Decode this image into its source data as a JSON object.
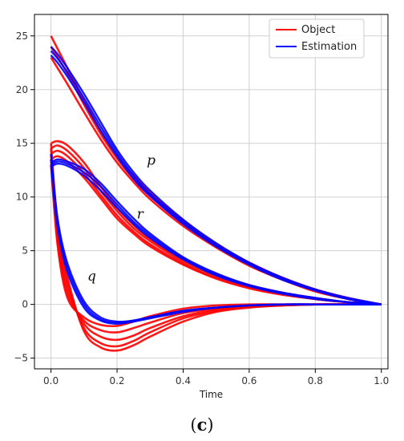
{
  "chart_data": {
    "type": "line",
    "xlabel": "Time",
    "ylabel": "",
    "xlim": [
      -0.05,
      1.02
    ],
    "ylim": [
      -6,
      27
    ],
    "xticks": [
      0.0,
      0.2,
      0.4,
      0.6,
      0.8,
      1.0
    ],
    "xtick_labels": [
      "0.0",
      "0.2",
      "0.4",
      "0.6",
      "0.8",
      "1.0"
    ],
    "yticks": [
      -5,
      0,
      5,
      10,
      15,
      20,
      25
    ],
    "ytick_labels": [
      "−5",
      "0",
      "5",
      "10",
      "15",
      "20",
      "25"
    ],
    "grid": true,
    "legend": {
      "placement": "top-right",
      "entries": [
        {
          "label": "Object",
          "color": "#ff0000"
        },
        {
          "label": "Estimation",
          "color": "#0000ff"
        }
      ]
    },
    "annotations": [
      {
        "text": "p",
        "x": 0.29,
        "y": 13.0
      },
      {
        "text": "r",
        "x": 0.26,
        "y": 8.0
      },
      {
        "text": "q",
        "x": 0.11,
        "y": 2.2
      }
    ],
    "x": [
      0.0,
      0.02,
      0.05,
      0.1,
      0.15,
      0.2,
      0.25,
      0.3,
      0.4,
      0.5,
      0.6,
      0.7,
      0.8,
      0.9,
      1.0
    ],
    "series": [
      {
        "group": "Object",
        "curve": "p",
        "values": [
          25.0,
          23.8,
          22.0,
          19.0,
          16.2,
          13.8,
          12.0,
          10.4,
          7.8,
          5.6,
          3.9,
          2.5,
          1.4,
          0.6,
          0.0
        ]
      },
      {
        "group": "Object",
        "curve": "p",
        "values": [
          24.0,
          23.0,
          21.5,
          18.6,
          15.9,
          13.6,
          11.7,
          10.1,
          7.6,
          5.5,
          3.8,
          2.4,
          1.3,
          0.5,
          0.0
        ]
      },
      {
        "group": "Object",
        "curve": "p",
        "values": [
          23.0,
          22.0,
          20.5,
          17.9,
          15.4,
          13.2,
          11.4,
          9.8,
          7.3,
          5.3,
          3.6,
          2.3,
          1.2,
          0.5,
          0.0
        ]
      },
      {
        "group": "Estimation",
        "curve": "p",
        "values": [
          24.0,
          23.3,
          22.0,
          19.6,
          17.0,
          14.4,
          12.3,
          10.6,
          7.9,
          5.7,
          3.9,
          2.5,
          1.4,
          0.6,
          0.0
        ]
      },
      {
        "group": "Estimation",
        "curve": "p",
        "values": [
          23.6,
          22.9,
          21.6,
          19.2,
          16.6,
          14.1,
          12.0,
          10.3,
          7.7,
          5.5,
          3.8,
          2.4,
          1.3,
          0.5,
          0.0
        ]
      },
      {
        "group": "Estimation",
        "curve": "p",
        "values": [
          23.2,
          22.5,
          21.2,
          18.8,
          16.2,
          13.8,
          11.7,
          10.1,
          7.5,
          5.4,
          3.7,
          2.3,
          1.3,
          0.5,
          0.0
        ]
      },
      {
        "group": "Object",
        "curve": "r",
        "values": [
          15.0,
          15.2,
          14.8,
          13.2,
          11.0,
          9.0,
          7.4,
          6.1,
          4.2,
          2.8,
          1.8,
          1.1,
          0.6,
          0.2,
          0.0
        ]
      },
      {
        "group": "Object",
        "curve": "r",
        "values": [
          14.5,
          14.8,
          14.3,
          12.7,
          10.6,
          8.7,
          7.1,
          5.9,
          4.0,
          2.7,
          1.7,
          1.0,
          0.5,
          0.2,
          0.0
        ]
      },
      {
        "group": "Object",
        "curve": "r",
        "values": [
          14.0,
          14.3,
          13.8,
          12.2,
          10.2,
          8.3,
          6.8,
          5.6,
          3.8,
          2.5,
          1.6,
          1.0,
          0.5,
          0.2,
          0.0
        ]
      },
      {
        "group": "Object",
        "curve": "r",
        "values": [
          13.5,
          13.8,
          13.3,
          11.8,
          9.9,
          8.0,
          6.6,
          5.4,
          3.7,
          2.4,
          1.5,
          0.9,
          0.5,
          0.2,
          0.0
        ]
      },
      {
        "group": "Estimation",
        "curve": "r",
        "values": [
          13.2,
          13.5,
          13.3,
          12.6,
          11.3,
          9.6,
          8.0,
          6.6,
          4.4,
          2.9,
          1.8,
          1.1,
          0.6,
          0.2,
          0.0
        ]
      },
      {
        "group": "Estimation",
        "curve": "r",
        "values": [
          13.0,
          13.3,
          13.1,
          12.3,
          11.0,
          9.3,
          7.7,
          6.4,
          4.3,
          2.8,
          1.8,
          1.1,
          0.6,
          0.2,
          0.0
        ]
      },
      {
        "group": "Estimation",
        "curve": "r",
        "values": [
          12.8,
          13.1,
          12.9,
          12.0,
          10.6,
          9.0,
          7.5,
          6.2,
          4.2,
          2.7,
          1.7,
          1.0,
          0.5,
          0.2,
          0.0
        ]
      },
      {
        "group": "Object",
        "curve": "q",
        "values": [
          15.0,
          7.5,
          2.5,
          -2.5,
          -4.0,
          -4.3,
          -3.8,
          -3.0,
          -1.6,
          -0.7,
          -0.3,
          -0.1,
          0.0,
          0.0,
          0.0
        ]
      },
      {
        "group": "Object",
        "curve": "q",
        "values": [
          14.5,
          7.0,
          2.0,
          -2.2,
          -3.6,
          -3.9,
          -3.4,
          -2.6,
          -1.3,
          -0.6,
          -0.2,
          -0.1,
          0.0,
          0.0,
          0.0
        ]
      },
      {
        "group": "Object",
        "curve": "q",
        "values": [
          14.0,
          6.5,
          1.5,
          -1.8,
          -3.0,
          -3.3,
          -2.9,
          -2.2,
          -1.1,
          -0.5,
          -0.2,
          -0.1,
          0.0,
          0.0,
          0.0
        ]
      },
      {
        "group": "Object",
        "curve": "q",
        "values": [
          13.5,
          6.0,
          1.0,
          -1.5,
          -2.4,
          -2.6,
          -2.2,
          -1.7,
          -0.8,
          -0.4,
          -0.1,
          0.0,
          0.0,
          0.0,
          0.0
        ]
      },
      {
        "group": "Object",
        "curve": "q",
        "values": [
          13.0,
          5.5,
          0.6,
          -1.2,
          -1.9,
          -2.0,
          -1.6,
          -1.1,
          -0.4,
          -0.1,
          0.0,
          0.0,
          0.0,
          0.0,
          0.0
        ]
      },
      {
        "group": "Estimation",
        "curve": "q",
        "values": [
          14.0,
          8.0,
          3.8,
          0.3,
          -1.2,
          -1.6,
          -1.5,
          -1.2,
          -0.6,
          -0.3,
          -0.1,
          0.0,
          0.0,
          0.0,
          0.0
        ]
      },
      {
        "group": "Estimation",
        "curve": "q",
        "values": [
          13.5,
          7.6,
          3.4,
          0.0,
          -1.4,
          -1.7,
          -1.5,
          -1.2,
          -0.6,
          -0.3,
          -0.1,
          0.0,
          0.0,
          0.0,
          0.0
        ]
      },
      {
        "group": "Estimation",
        "curve": "q",
        "values": [
          13.0,
          7.2,
          3.0,
          -0.3,
          -1.5,
          -1.8,
          -1.6,
          -1.3,
          -0.7,
          -0.3,
          -0.1,
          0.0,
          0.0,
          0.0,
          0.0
        ]
      }
    ]
  },
  "caption": {
    "open": "(",
    "letter": "c",
    "close": ")"
  }
}
